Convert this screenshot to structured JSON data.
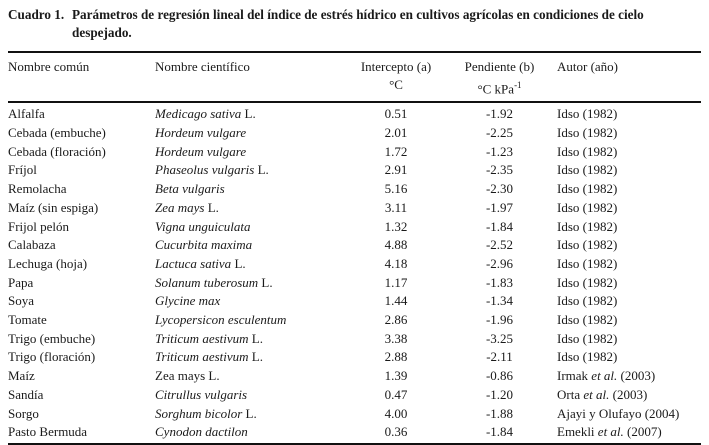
{
  "caption": {
    "label": "Cuadro 1.",
    "line1": "Parámetros de regresión lineal del índice de estrés hídrico en cultivos agrícolas en condiciones de cielo",
    "line2": "despejado."
  },
  "table": {
    "headers": {
      "common_name": "Nombre común",
      "scientific_name": "Nombre científico",
      "intercept_label": "Intercepto (a)",
      "intercept_unit": "°C",
      "slope_label": "Pendiente (b)",
      "slope_unit_base": "°C kPa",
      "slope_unit_sup": "-1",
      "author": "Autor (año)"
    },
    "rows": [
      {
        "common": "Alfalfa",
        "sci_italic": "Medicago sativa",
        "sci_reg": " L.",
        "intercept": "0.51",
        "slope": "-1.92",
        "author_pre": "Idso (1982)",
        "author_etal": "",
        "author_post": ""
      },
      {
        "common": "Cebada (embuche)",
        "sci_italic": "Hordeum vulgare",
        "sci_reg": "",
        "intercept": "2.01",
        "slope": "-2.25",
        "author_pre": "Idso (1982)",
        "author_etal": "",
        "author_post": ""
      },
      {
        "common": "Cebada (floración)",
        "sci_italic": "Hordeum vulgare",
        "sci_reg": "",
        "intercept": "1.72",
        "slope": "-1.23",
        "author_pre": "Idso (1982)",
        "author_etal": "",
        "author_post": ""
      },
      {
        "common": "Fríjol",
        "sci_italic": "Phaseolus vulgaris",
        "sci_reg": " L.",
        "intercept": "2.91",
        "slope": "-2.35",
        "author_pre": "Idso (1982)",
        "author_etal": "",
        "author_post": ""
      },
      {
        "common": "Remolacha",
        "sci_italic": "Beta vulgaris",
        "sci_reg": "",
        "intercept": "5.16",
        "slope": "-2.30",
        "author_pre": "Idso (1982)",
        "author_etal": "",
        "author_post": ""
      },
      {
        "common": "Maíz (sin espiga)",
        "sci_italic": "Zea mays",
        "sci_reg": " L.",
        "intercept": "3.11",
        "slope": "-1.97",
        "author_pre": "Idso (1982)",
        "author_etal": "",
        "author_post": ""
      },
      {
        "common": "Frijol pelón",
        "sci_italic": "Vigna unguiculata",
        "sci_reg": "",
        "intercept": "1.32",
        "slope": "-1.84",
        "author_pre": "Idso (1982)",
        "author_etal": "",
        "author_post": ""
      },
      {
        "common": "Calabaza",
        "sci_italic": "Cucurbita maxima",
        "sci_reg": "",
        "intercept": "4.88",
        "slope": "-2.52",
        "author_pre": "Idso (1982)",
        "author_etal": "",
        "author_post": ""
      },
      {
        "common": "Lechuga (hoja)",
        "sci_italic": "Lactuca sativa",
        "sci_reg": " L.",
        "intercept": "4.18",
        "slope": "-2.96",
        "author_pre": "Idso (1982)",
        "author_etal": "",
        "author_post": ""
      },
      {
        "common": "Papa",
        "sci_italic": "Solanum tuberosum",
        "sci_reg": " L.",
        "intercept": "1.17",
        "slope": "-1.83",
        "author_pre": "Idso (1982)",
        "author_etal": "",
        "author_post": ""
      },
      {
        "common": "Soya",
        "sci_italic": "Glycine max",
        "sci_reg": "",
        "intercept": "1.44",
        "slope": "-1.34",
        "author_pre": "Idso (1982)",
        "author_etal": "",
        "author_post": ""
      },
      {
        "common": "Tomate",
        "sci_italic": "Lycopersicon esculentum",
        "sci_reg": "",
        "intercept": "2.86",
        "slope": "-1.96",
        "author_pre": "Idso (1982)",
        "author_etal": "",
        "author_post": ""
      },
      {
        "common": "Trigo (embuche)",
        "sci_italic": "Triticum aestivum",
        "sci_reg": " L.",
        "intercept": "3.38",
        "slope": "-3.25",
        "author_pre": "Idso (1982)",
        "author_etal": "",
        "author_post": ""
      },
      {
        "common": "Trigo (floración)",
        "sci_italic": "Triticum aestivum",
        "sci_reg": " L.",
        "intercept": "2.88",
        "slope": "-2.11",
        "author_pre": "Idso (1982)",
        "author_etal": "",
        "author_post": ""
      },
      {
        "common": "Maíz",
        "sci_italic": "",
        "sci_reg": "Zea mays L.",
        "intercept": "1.39",
        "slope": "-0.86",
        "author_pre": "Irmak ",
        "author_etal": "et al.",
        "author_post": " (2003)"
      },
      {
        "common": "Sandía",
        "sci_italic": "Citrullus vulgaris",
        "sci_reg": "",
        "intercept": "0.47",
        "slope": "-1.20",
        "author_pre": "Orta ",
        "author_etal": "et al.",
        "author_post": " (2003)"
      },
      {
        "common": "Sorgo",
        "sci_italic": "Sorghum bicolor",
        "sci_reg": " L.",
        "intercept": "4.00",
        "slope": "-1.88",
        "author_pre": "Ajayi y Olufayo (2004)",
        "author_etal": "",
        "author_post": ""
      },
      {
        "common": "Pasto Bermuda",
        "sci_italic": "Cynodon dactilon",
        "sci_reg": "",
        "intercept": "0.36",
        "slope": "-1.84",
        "author_pre": "Emekli ",
        "author_etal": "et al.",
        "author_post": " (2007)"
      }
    ]
  }
}
